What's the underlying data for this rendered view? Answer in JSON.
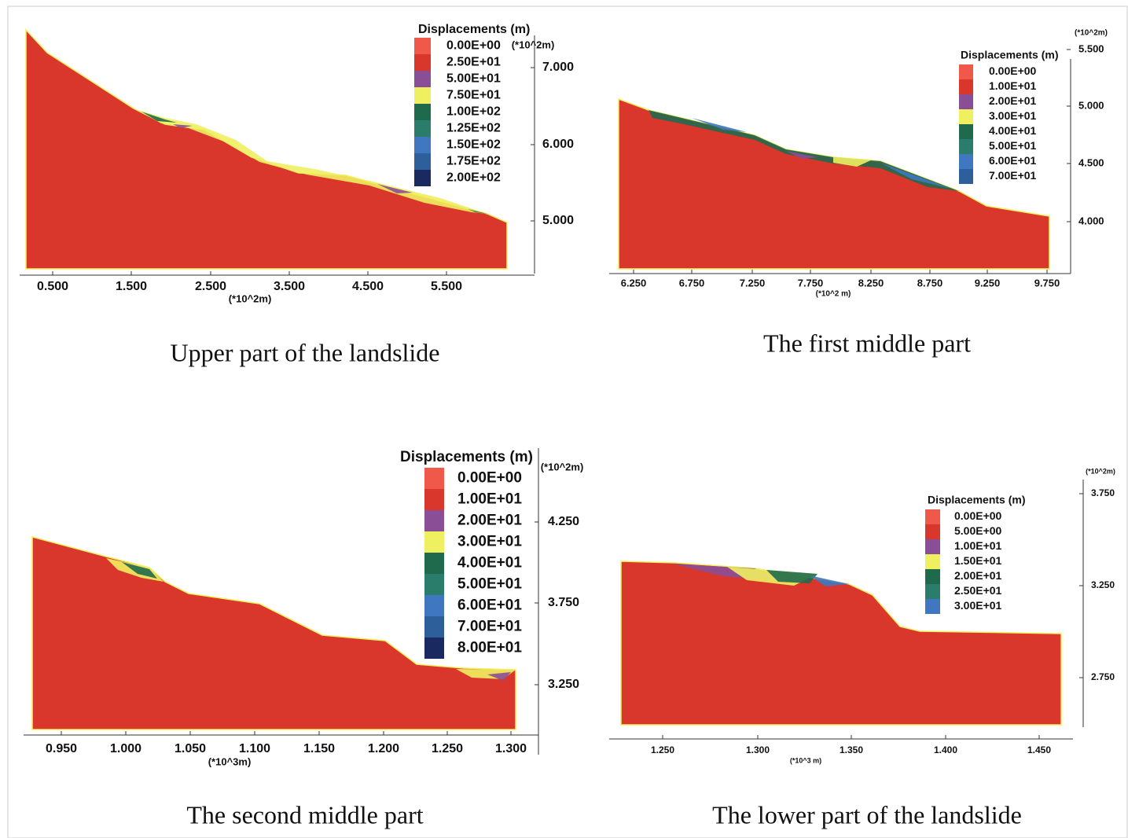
{
  "panels": [
    {
      "caption": "Upper part of the landslide",
      "legend": {
        "title": "Displacements (m)",
        "entries": [
          "0.00E+00",
          "2.50E+01",
          "5.00E+01",
          "7.50E+01",
          "1.00E+02",
          "1.25E+02",
          "1.50E+02",
          "1.75E+02",
          "2.00E+02"
        ],
        "colors": [
          "#f0584a",
          "#d9372b",
          "#8a4e96",
          "#eef060",
          "#1f6a4c",
          "#2a7d6a",
          "#3f78c0",
          "#2d5f9a",
          "#1a2a60"
        ]
      },
      "x_axis": {
        "ticks": [
          "0.500",
          "1.500",
          "2.500",
          "3.500",
          "4.500",
          "5.500"
        ],
        "unit": "(*10^2m)"
      },
      "y_axis": {
        "ticks": [
          "7.000",
          "6.000",
          "5.000"
        ],
        "unit": "(*10^2m)"
      }
    },
    {
      "caption": "The first middle part",
      "legend": {
        "title": "Displacements (m)",
        "entries": [
          "0.00E+00",
          "1.00E+01",
          "2.00E+01",
          "3.00E+01",
          "4.00E+01",
          "5.00E+01",
          "6.00E+01",
          "7.00E+01"
        ],
        "colors": [
          "#f0584a",
          "#d9372b",
          "#8a4e96",
          "#eef060",
          "#1f6a4c",
          "#2a7d6a",
          "#3f78c0",
          "#2d5f9a"
        ]
      },
      "x_axis": {
        "ticks": [
          "6.250",
          "6.750",
          "7.250",
          "7.750",
          "8.250",
          "8.750",
          "9.250",
          "9.750"
        ],
        "unit": "(*10^2 m)"
      },
      "y_axis": {
        "ticks": [
          "5.500",
          "5.000",
          "4.500",
          "4.000"
        ],
        "unit": "(*10^2m)"
      }
    },
    {
      "caption": "The second middle part",
      "legend": {
        "title": "Displacements (m)",
        "entries": [
          "0.00E+00",
          "1.00E+01",
          "2.00E+01",
          "3.00E+01",
          "4.00E+01",
          "5.00E+01",
          "6.00E+01",
          "7.00E+01",
          "8.00E+01"
        ],
        "colors": [
          "#f0584a",
          "#d9372b",
          "#8a4e96",
          "#eef060",
          "#1f6a4c",
          "#2a7d6a",
          "#3f78c0",
          "#2d5f9a",
          "#1a2a60"
        ]
      },
      "x_axis": {
        "ticks": [
          "0.950",
          "1.000",
          "1.050",
          "1.100",
          "1.150",
          "1.200",
          "1.250",
          "1.300"
        ],
        "unit": "(*10^3m)"
      },
      "y_axis": {
        "ticks": [
          "4.250",
          "3.750",
          "3.250"
        ],
        "unit": "(*10^2m)"
      }
    },
    {
      "caption": "The lower part of the landslide",
      "legend": {
        "title": "Displacements (m)",
        "entries": [
          "0.00E+00",
          "5.00E+00",
          "1.00E+01",
          "1.50E+01",
          "2.00E+01",
          "2.50E+01",
          "3.00E+01"
        ],
        "colors": [
          "#f0584a",
          "#d9372b",
          "#8a4e96",
          "#eef060",
          "#1f6a4c",
          "#2a7d6a",
          "#3f78c0"
        ]
      },
      "x_axis": {
        "ticks": [
          "1.250",
          "1.300",
          "1.350",
          "1.400",
          "1.450"
        ],
        "unit": "(*10^3 m)"
      },
      "y_axis": {
        "ticks": [
          "3.750",
          "3.250",
          "2.750"
        ],
        "unit": "(*10^2m)"
      }
    }
  ]
}
